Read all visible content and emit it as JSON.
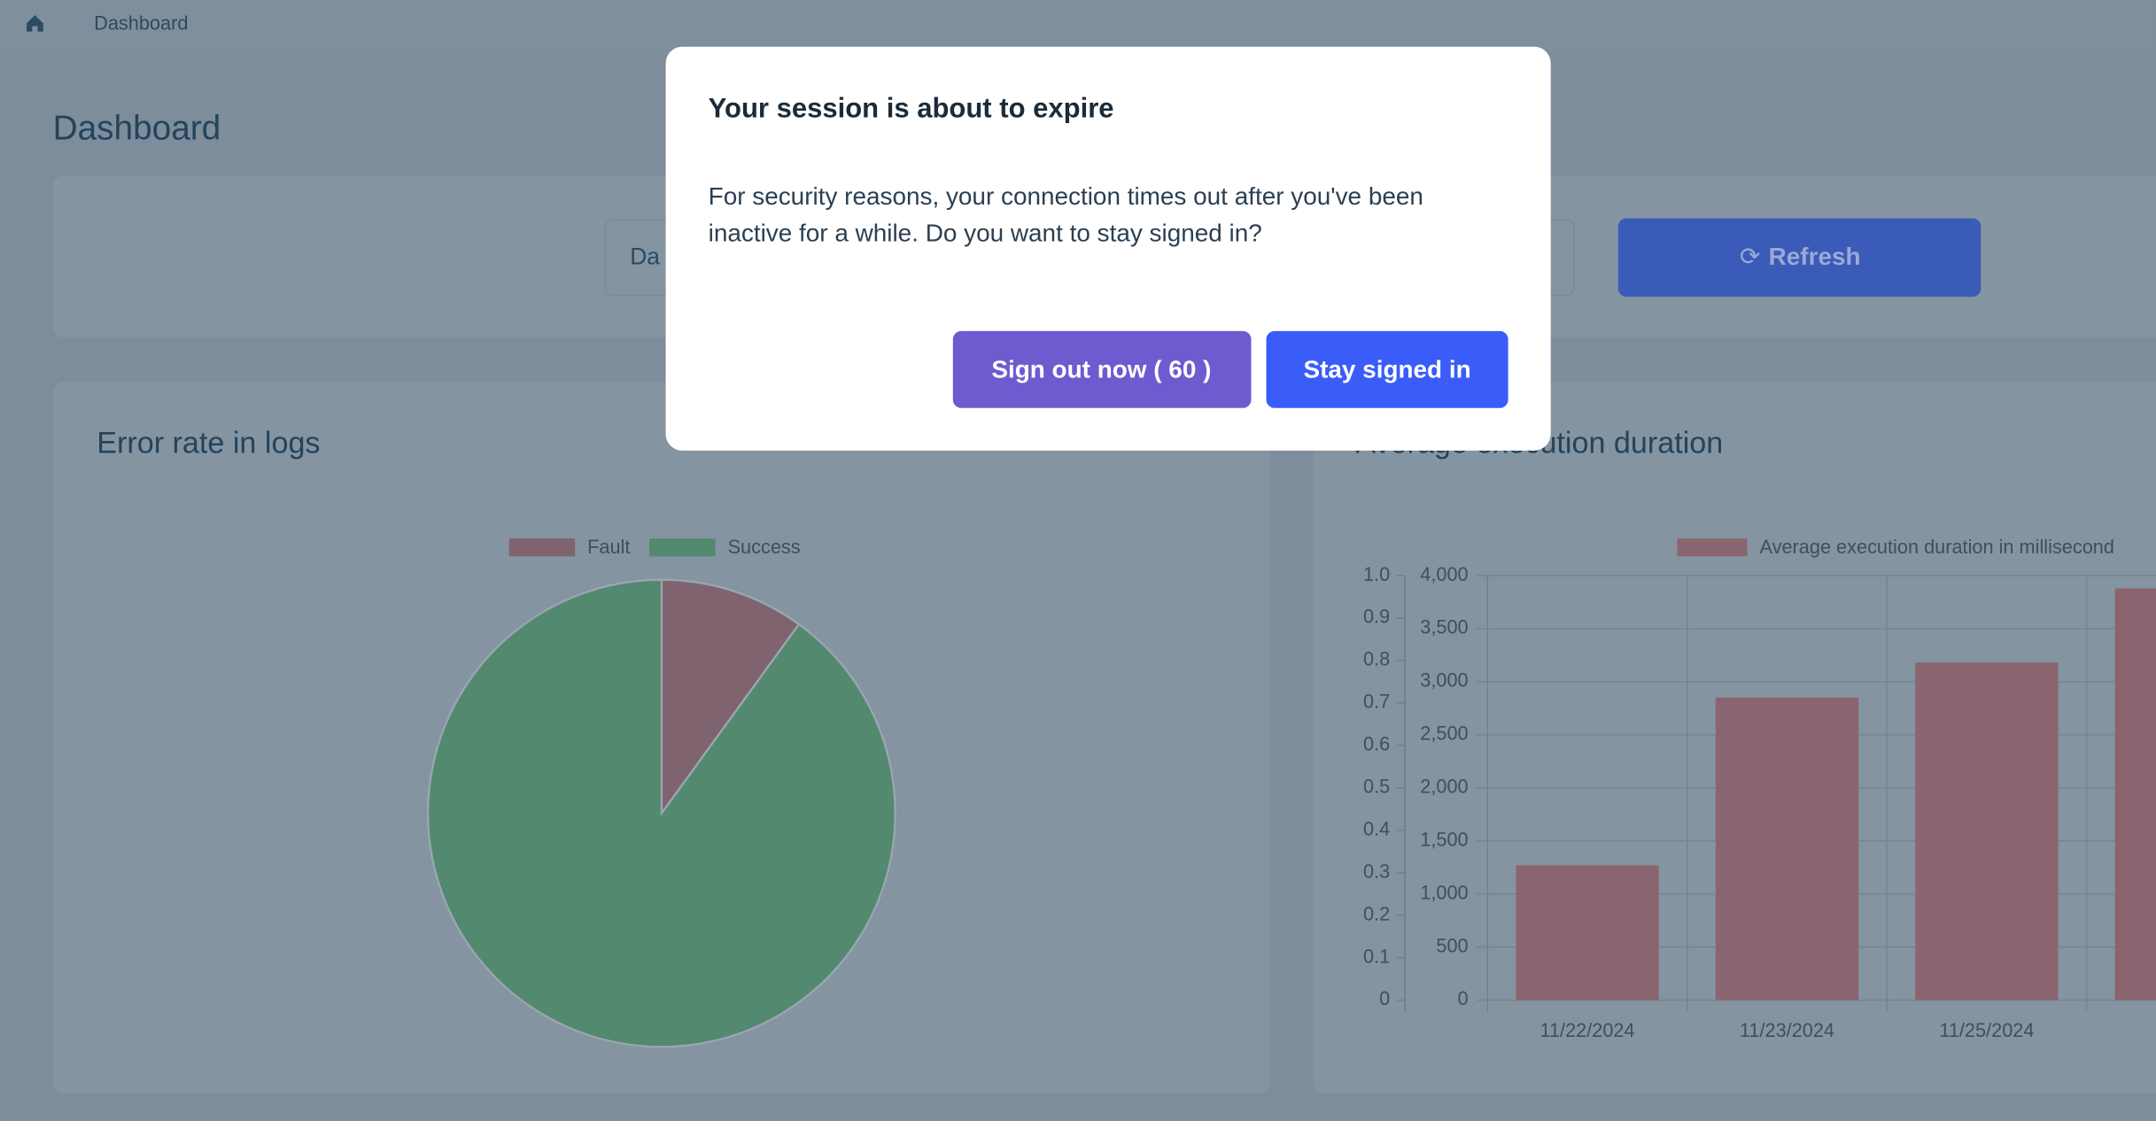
{
  "breadcrumb": "Dashboard",
  "page_title": "Dashboard",
  "date_field": "Da",
  "refresh_button": "Refresh",
  "modal": {
    "title": "Your session is about to expire",
    "body": [
      "For security reasons, your connection times out after you've been",
      "inactive for a while. Do you want to stay signed in?"
    ],
    "sign_out_button": "Sign out now ( 60 )",
    "stay_button": "Stay signed in"
  },
  "chart_data": [
    {
      "type": "pie",
      "title": "Error rate in logs",
      "categories": [
        "Fault",
        "Success"
      ],
      "values": [
        10,
        90
      ],
      "colors": [
        "#7f6470",
        "#52896f"
      ]
    },
    {
      "type": "bar",
      "title": "Average execution duration",
      "categories": [
        "11/22/2024",
        "11/23/2024",
        "11/25/2024",
        null
      ],
      "series": [
        {
          "name": "Average execution duration in millisecond",
          "color": "#8a6570",
          "values": [
            1270,
            2850,
            3180,
            3880
          ]
        }
      ],
      "ylim": [
        0,
        1
      ],
      "yticks": [
        0,
        0.1,
        0.2,
        0.3,
        0.4,
        0.5,
        0.6,
        0.7,
        0.8,
        0.9,
        {
          "value": 1,
          "label": "1.0"
        }
      ],
      "y2lim": [
        0,
        4000
      ],
      "y2ticks": [
        0,
        500,
        {
          "value": 1000,
          "label": "1,000"
        },
        {
          "value": 1500,
          "label": "1,500"
        },
        {
          "value": 2000,
          "label": "2,000"
        },
        {
          "value": 2500,
          "label": "2,500"
        },
        {
          "value": 3000,
          "label": "3,000"
        },
        {
          "value": 3500,
          "label": "3,500"
        },
        {
          "value": 4000,
          "label": "4,000"
        }
      ],
      "grid": true
    }
  ]
}
